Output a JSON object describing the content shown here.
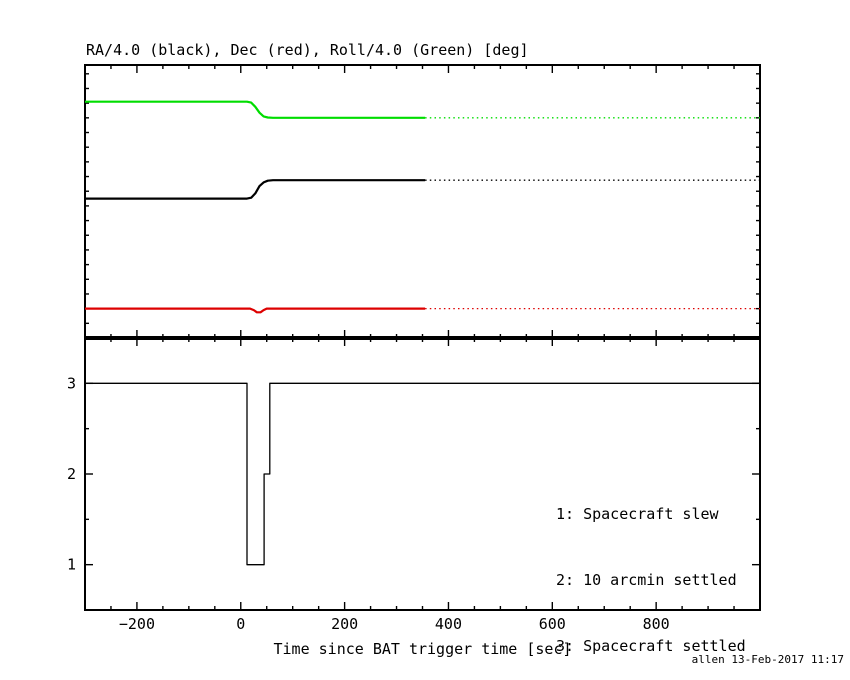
{
  "page": {
    "credit": "allen 13-Feb-2017 11:17"
  },
  "colors": {
    "background": "#ffffff",
    "axis": "#000000",
    "ra_black": "#000000",
    "dec_red": "#dd0000",
    "roll_green": "#00dd00"
  },
  "chart_data": [
    {
      "type": "line",
      "panel": "attitude",
      "title": "RA/4.0 (black), Dec (red), Roll/4.0 (Green) [deg]",
      "xlim": [
        -300,
        1000
      ],
      "ylim": [
        -93,
        93
      ],
      "xticks": [
        -200,
        0,
        200,
        400,
        600,
        800,
        1000
      ],
      "xtick_minor": 50,
      "yticks": [
        -50,
        0,
        50
      ],
      "ytick_minor": 10,
      "xtick_labels": false,
      "grid": false,
      "series": [
        {
          "name": "Roll/4.0 (Green)",
          "color": "#00dd00",
          "lw": 2.2,
          "segments": [
            {
              "style": "solid",
              "points": [
                [
                  -300,
                  68
                ],
                [
                  12,
                  68
                ],
                [
                  20,
                  67.4
                ],
                [
                  28,
                  64.5
                ],
                [
                  36,
                  60.5
                ],
                [
                  44,
                  58
                ],
                [
                  52,
                  57.2
                ],
                [
                  62,
                  57
                ],
                [
                  355,
                  57
                ]
              ]
            },
            {
              "style": "dotted",
              "points": [
                [
                  355,
                  57
                ],
                [
                  1000,
                  57
                ]
              ]
            }
          ]
        },
        {
          "name": "RA/4.0 (black)",
          "color": "#000000",
          "lw": 2.2,
          "segments": [
            {
              "style": "solid",
              "points": [
                [
                  -300,
                  2
                ],
                [
                  12,
                  2
                ],
                [
                  20,
                  2.6
                ],
                [
                  28,
                  5.5
                ],
                [
                  36,
                  10.5
                ],
                [
                  44,
                  13
                ],
                [
                  52,
                  14.2
                ],
                [
                  62,
                  14.5
                ],
                [
                  355,
                  14.5
                ]
              ]
            },
            {
              "style": "dotted",
              "points": [
                [
                  355,
                  14.5
                ],
                [
                  1000,
                  14.5
                ]
              ]
            }
          ]
        },
        {
          "name": "Dec (red)",
          "color": "#dd0000",
          "lw": 2.2,
          "segments": [
            {
              "style": "solid",
              "points": [
                [
                  -300,
                  -73
                ],
                [
                  18,
                  -73
                ],
                [
                  25,
                  -74
                ],
                [
                  31,
                  -75.5
                ],
                [
                  38,
                  -75.5
                ],
                [
                  44,
                  -74
                ],
                [
                  50,
                  -73
                ],
                [
                  355,
                  -73
                ]
              ]
            },
            {
              "style": "dotted",
              "points": [
                [
                  355,
                  -73
                ],
                [
                  1000,
                  -73
                ]
              ]
            }
          ]
        }
      ]
    },
    {
      "type": "line",
      "panel": "settling-state",
      "xlabel": "Time since BAT trigger time [sec]",
      "xlim": [
        -300,
        1000
      ],
      "ylim": [
        0.5,
        3.5
      ],
      "xticks": [
        -200,
        0,
        200,
        400,
        600,
        800,
        1000
      ],
      "xtick_minor": 50,
      "yticks": [
        1,
        2,
        3
      ],
      "ytick_minor": 0.5,
      "xtick_labels": true,
      "grid": false,
      "series": [
        {
          "name": "settling state",
          "color": "#000000",
          "lw": 1.3,
          "segments": [
            {
              "style": "solid",
              "points": [
                [
                  -300,
                  3
                ],
                [
                  12,
                  3
                ],
                [
                  12,
                  1
                ],
                [
                  45,
                  1
                ],
                [
                  45,
                  2
                ],
                [
                  56,
                  2
                ],
                [
                  56,
                  3
                ],
                [
                  1000,
                  3
                ]
              ]
            }
          ]
        }
      ],
      "annotations": [
        "1: Spacecraft slew",
        "2: 10 arcmin settled",
        "3: Spacecraft settled"
      ]
    }
  ]
}
